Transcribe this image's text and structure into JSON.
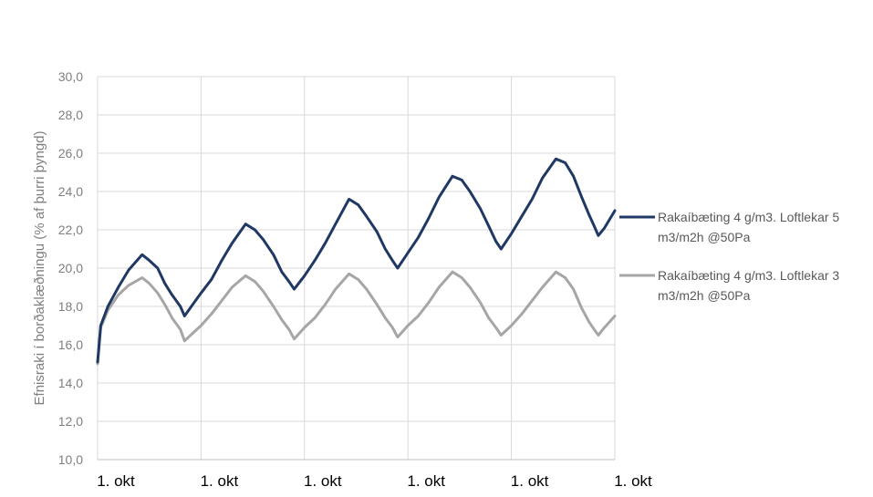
{
  "chart_data": {
    "type": "line",
    "title": "",
    "xlabel": "",
    "ylabel": "Efnisraki í borðaklæðningu (% af þurri þyngd)",
    "ylim": [
      10,
      30
    ],
    "yticks": [
      "10,0",
      "12,0",
      "14,0",
      "16,0",
      "18,0",
      "20,0",
      "22,0",
      "24,0",
      "26,0",
      "28,0",
      "30,0"
    ],
    "xticks": [
      "1. okt",
      "1. okt",
      "1. okt",
      "1. okt",
      "1. okt",
      "1. okt"
    ],
    "x_unit": "years",
    "grid": "vertical and horizontal",
    "legend_position": "right",
    "series": [
      {
        "name": "Rakaíbæting 4 g/m3. Loftlekar 5 m3/m2h @50Pa",
        "legend_lines": [
          "Rakaíbæting 4 g/m3. Loftlekar 5",
          "m3/m2h @50Pa"
        ],
        "color": "#1f3864",
        "points": [
          [
            0.0,
            15.1
          ],
          [
            0.03,
            17.0
          ],
          [
            0.1,
            18.0
          ],
          [
            0.2,
            19.0
          ],
          [
            0.3,
            19.9
          ],
          [
            0.43,
            20.7
          ],
          [
            0.5,
            20.4
          ],
          [
            0.58,
            20.0
          ],
          [
            0.65,
            19.2
          ],
          [
            0.72,
            18.6
          ],
          [
            0.8,
            18.0
          ],
          [
            0.84,
            17.5
          ],
          [
            0.92,
            18.1
          ],
          [
            1.0,
            18.7
          ],
          [
            1.1,
            19.4
          ],
          [
            1.2,
            20.4
          ],
          [
            1.3,
            21.3
          ],
          [
            1.43,
            22.3
          ],
          [
            1.52,
            22.0
          ],
          [
            1.6,
            21.5
          ],
          [
            1.7,
            20.7
          ],
          [
            1.78,
            19.8
          ],
          [
            1.85,
            19.3
          ],
          [
            1.9,
            18.9
          ],
          [
            2.0,
            19.6
          ],
          [
            2.1,
            20.4
          ],
          [
            2.2,
            21.3
          ],
          [
            2.3,
            22.3
          ],
          [
            2.43,
            23.6
          ],
          [
            2.52,
            23.3
          ],
          [
            2.6,
            22.7
          ],
          [
            2.7,
            21.9
          ],
          [
            2.78,
            21.0
          ],
          [
            2.85,
            20.4
          ],
          [
            2.9,
            20.0
          ],
          [
            3.0,
            20.8
          ],
          [
            3.1,
            21.6
          ],
          [
            3.2,
            22.6
          ],
          [
            3.3,
            23.7
          ],
          [
            3.43,
            24.8
          ],
          [
            3.52,
            24.6
          ],
          [
            3.6,
            24.0
          ],
          [
            3.7,
            23.1
          ],
          [
            3.78,
            22.2
          ],
          [
            3.85,
            21.4
          ],
          [
            3.9,
            21.0
          ],
          [
            4.0,
            21.8
          ],
          [
            4.1,
            22.7
          ],
          [
            4.2,
            23.6
          ],
          [
            4.3,
            24.7
          ],
          [
            4.43,
            25.7
          ],
          [
            4.52,
            25.5
          ],
          [
            4.6,
            24.8
          ],
          [
            4.68,
            23.7
          ],
          [
            4.75,
            22.8
          ],
          [
            4.8,
            22.2
          ],
          [
            4.84,
            21.7
          ],
          [
            4.9,
            22.1
          ],
          [
            5.0,
            23.0
          ]
        ]
      },
      {
        "name": "Rakaíbæting 4 g/m3. Loftlekar 3 m3/m2h @50Pa",
        "legend_lines": [
          "Rakaíbæting 4 g/m3. Loftlekar 3",
          "m3/m2h @50Pa"
        ],
        "color": "#a6a6a6",
        "points": [
          [
            0.0,
            15.0
          ],
          [
            0.03,
            16.9
          ],
          [
            0.1,
            17.8
          ],
          [
            0.2,
            18.6
          ],
          [
            0.3,
            19.1
          ],
          [
            0.43,
            19.5
          ],
          [
            0.5,
            19.2
          ],
          [
            0.58,
            18.7
          ],
          [
            0.65,
            18.1
          ],
          [
            0.72,
            17.4
          ],
          [
            0.8,
            16.8
          ],
          [
            0.84,
            16.2
          ],
          [
            0.92,
            16.6
          ],
          [
            1.0,
            17.0
          ],
          [
            1.1,
            17.6
          ],
          [
            1.2,
            18.3
          ],
          [
            1.3,
            19.0
          ],
          [
            1.43,
            19.6
          ],
          [
            1.52,
            19.3
          ],
          [
            1.6,
            18.8
          ],
          [
            1.7,
            18.0
          ],
          [
            1.78,
            17.3
          ],
          [
            1.85,
            16.8
          ],
          [
            1.9,
            16.3
          ],
          [
            2.0,
            16.9
          ],
          [
            2.1,
            17.4
          ],
          [
            2.2,
            18.1
          ],
          [
            2.3,
            18.9
          ],
          [
            2.43,
            19.7
          ],
          [
            2.52,
            19.4
          ],
          [
            2.6,
            18.9
          ],
          [
            2.7,
            18.1
          ],
          [
            2.78,
            17.4
          ],
          [
            2.85,
            16.9
          ],
          [
            2.9,
            16.4
          ],
          [
            3.0,
            17.0
          ],
          [
            3.1,
            17.5
          ],
          [
            3.2,
            18.2
          ],
          [
            3.3,
            19.0
          ],
          [
            3.43,
            19.8
          ],
          [
            3.52,
            19.5
          ],
          [
            3.6,
            19.0
          ],
          [
            3.7,
            18.2
          ],
          [
            3.78,
            17.4
          ],
          [
            3.85,
            16.9
          ],
          [
            3.9,
            16.5
          ],
          [
            4.0,
            17.0
          ],
          [
            4.1,
            17.6
          ],
          [
            4.2,
            18.3
          ],
          [
            4.3,
            19.0
          ],
          [
            4.43,
            19.8
          ],
          [
            4.52,
            19.5
          ],
          [
            4.6,
            18.9
          ],
          [
            4.68,
            17.9
          ],
          [
            4.75,
            17.2
          ],
          [
            4.8,
            16.8
          ],
          [
            4.84,
            16.5
          ],
          [
            4.9,
            16.9
          ],
          [
            5.0,
            17.5
          ]
        ]
      }
    ]
  }
}
